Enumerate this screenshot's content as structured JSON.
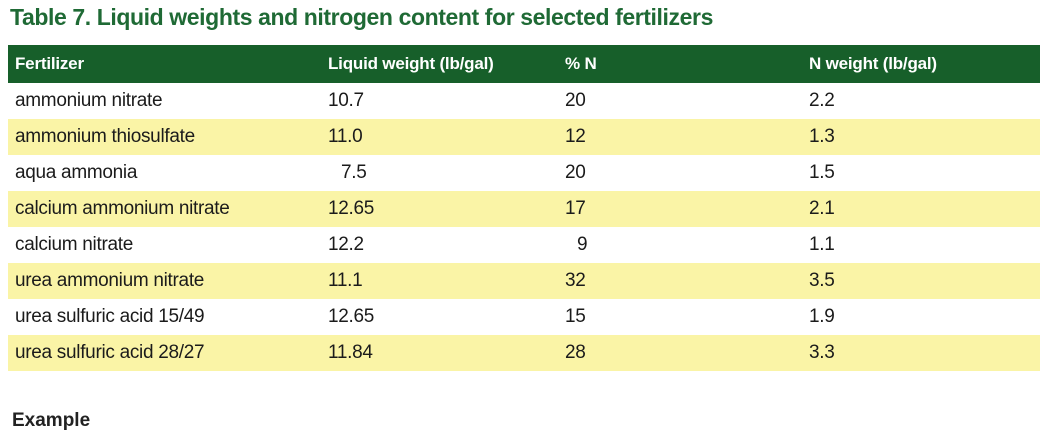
{
  "title": "Table 7. Liquid weights and nitrogen content for selected fertilizers",
  "table": {
    "headers": [
      "Fertilizer",
      "Liquid weight (lb/gal)",
      "% N",
      "N weight (lb/gal)"
    ],
    "rows": [
      [
        "ammonium nitrate",
        "10.7",
        "20",
        "2.2"
      ],
      [
        "ammonium thiosulfate",
        "11.0",
        "12",
        "1.3"
      ],
      [
        "aqua ammonia",
        "7.5",
        "20",
        "1.5"
      ],
      [
        "calcium ammonium nitrate",
        "12.65",
        "17",
        "2.1"
      ],
      [
        "calcium nitrate",
        "12.2",
        "9",
        "1.1"
      ],
      [
        "urea ammonium nitrate",
        "11.1",
        "32",
        "3.5"
      ],
      [
        "urea sulfuric acid 15/49",
        "12.65",
        "15",
        "1.9"
      ],
      [
        "urea sulfuric acid 28/27",
        "11.84",
        "28",
        "3.3"
      ]
    ]
  },
  "footer": {
    "example_heading": "Example"
  },
  "colors": {
    "title_green": "#1f6a35",
    "header_bg": "#175f2a",
    "stripe_yellow": "#faf4a6"
  }
}
